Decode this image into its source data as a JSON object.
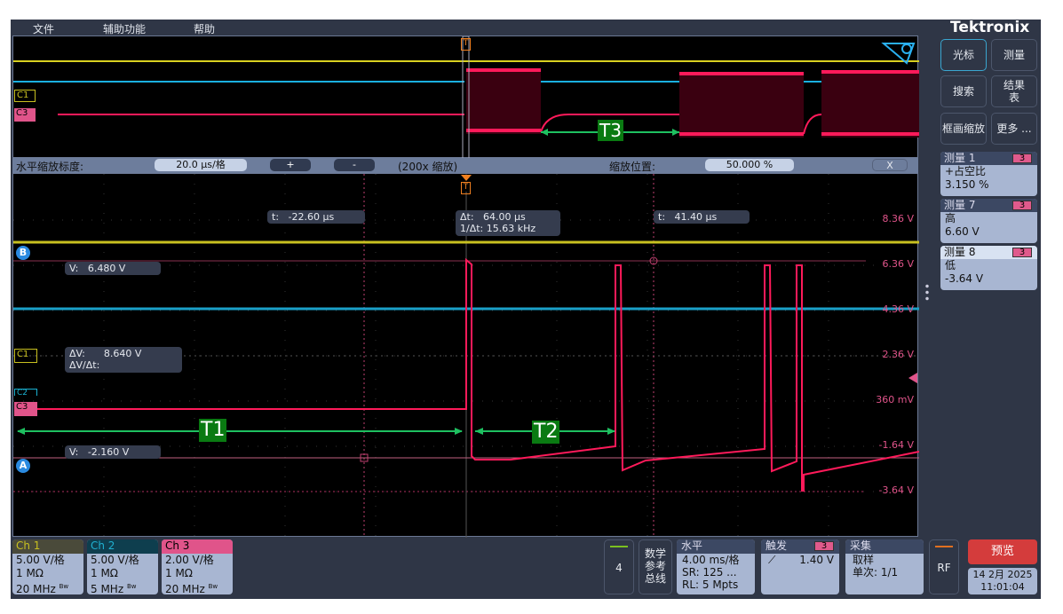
{
  "menu": [
    "文件",
    "辅助功能",
    "帮助"
  ],
  "brand": "Tektronix",
  "zoom_bar": {
    "scale_label": "水平缩放标度:",
    "scale_value": "20.0 µs/格",
    "plus": "+",
    "minus": "-",
    "factor": "(200x 缩放)",
    "pos_label": "缩放位置:",
    "pos_value": "50.000 %",
    "close": "X"
  },
  "cursors": {
    "t1": "t:   -22.60 µs",
    "dt": "Δt:   64.00 µs",
    "inv_dt": "1/Δt: 15.63 kHz",
    "t2": "t:   41.40 µs",
    "v_b": "V:   6.480 V",
    "dv": "ΔV:      8.640 V",
    "dvdt": "ΔV/Δt:",
    "v_a": "V:   -2.160 V",
    "a": "A",
    "b": "B"
  },
  "channel_markers": {
    "c1": "C1",
    "c2": "C2",
    "c3": "C3",
    "trigger": "T"
  },
  "annotations": {
    "t1": "T1",
    "t2": "T2",
    "t3": "T3"
  },
  "v_labels": [
    "8.36 V",
    "6.36 V",
    "4.36 V",
    "2.36 V",
    "360 mV",
    "-1.64 V",
    "-3.64 V"
  ],
  "right_buttons": [
    "光标",
    "测量",
    "搜索",
    "结果表",
    "框画缩放",
    "更多 ..."
  ],
  "measurements": [
    {
      "title": "测量 1",
      "src": "3",
      "name": "+占空比",
      "value": "3.150 %"
    },
    {
      "title": "测量 7",
      "src": "3",
      "name": "高",
      "value": "6.60 V"
    },
    {
      "title": "测量 8",
      "src": "3",
      "name": "低",
      "value": "-3.64 V"
    }
  ],
  "channels": [
    {
      "name": "Ch 1",
      "scale": "5.00 V/格",
      "imp": "1 MΩ",
      "bw": "20 MHz",
      "color": "#c8c020"
    },
    {
      "name": "Ch 2",
      "scale": "5.00 V/格",
      "imp": "1 MΩ",
      "bw": "5 MHz",
      "color": "#20b0d0"
    },
    {
      "name": "Ch 3",
      "scale": "2.00 V/格",
      "imp": "1 MΩ",
      "bw": "20 MHz",
      "color": "#e0548a"
    }
  ],
  "bw_mark": "Bw",
  "bottom": {
    "four": "4",
    "math": "数学",
    "ref": "参考",
    "bus": "总线",
    "horiz_title": "水平",
    "horiz_scale": "4.00 ms/格",
    "sr": "SR: 125 ...",
    "rl": "RL: 5 Mpts",
    "trig_title": "触发",
    "trig_src": "3",
    "trig_level": "1.40 V",
    "acq_title": "采集",
    "acq_mode": "取样",
    "acq_count": "单次: 1/1",
    "rf": "RF",
    "preview": "预览",
    "date": "14 2月 2025",
    "time": "11:01:04"
  }
}
